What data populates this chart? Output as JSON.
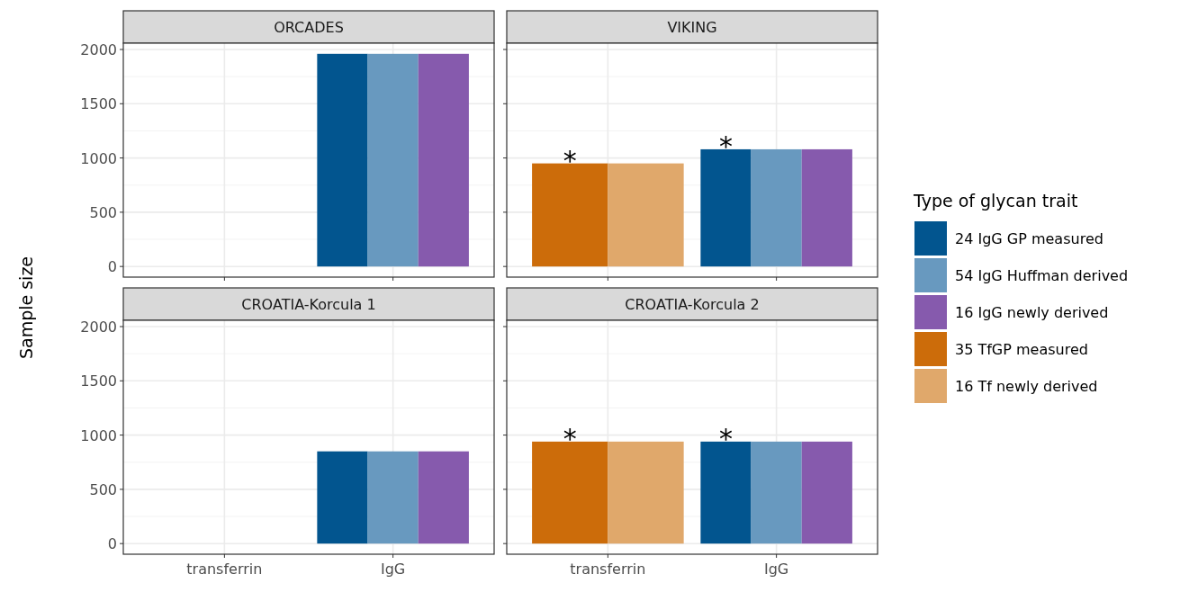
{
  "chart_data": [
    {
      "type": "bar",
      "title": "ORCADES",
      "ylabel": "Sample size",
      "categories": [
        "transferrin",
        "IgG"
      ],
      "ylim": [
        -98,
        2058
      ],
      "yticks": [
        0,
        500,
        1000,
        1500,
        2000
      ],
      "grid": true,
      "tick_labels": "y",
      "series": [
        {
          "color": "#02558f",
          "values": [
            null,
            1960
          ]
        },
        {
          "color": "#6899bf",
          "values": [
            null,
            1960
          ]
        },
        {
          "color": "#865aad",
          "values": [
            null,
            1960
          ]
        }
      ]
    },
    {
      "type": "bar",
      "title": "VIKING",
      "categories": [
        "transferrin",
        "IgG"
      ],
      "ylim": [
        -98,
        2058
      ],
      "yticks": [
        0,
        500,
        1000,
        1500,
        2000
      ],
      "grid": true,
      "tick_labels": false,
      "legend": "right",
      "legend_title": "Type of glycan trait",
      "annotations": [
        {
          "text": "*",
          "x": "transferrin",
          "y": 950
        },
        {
          "text": "*",
          "x": "IgG",
          "y": 1080
        }
      ],
      "series": [
        {
          "name": "24 IgG GP measured",
          "color": "#02558f",
          "values": [
            null,
            1080
          ]
        },
        {
          "name": "54 IgG Huffman derived",
          "color": "#6899bf",
          "values": [
            null,
            1080
          ]
        },
        {
          "name": "16 IgG newly derived",
          "color": "#865aad",
          "values": [
            null,
            1080
          ]
        },
        {
          "name": "35 TfGP measured",
          "color": "#cc6c0a",
          "values": [
            950,
            null
          ]
        },
        {
          "name": "16 Tf newly derived",
          "color": "#e0a86b",
          "values": [
            950,
            null
          ]
        }
      ]
    },
    {
      "type": "bar",
      "title": "CROATIA-Korcula 1",
      "categories": [
        "transferrin",
        "IgG"
      ],
      "ylim": [
        -98,
        2058
      ],
      "yticks": [
        0,
        500,
        1000,
        1500,
        2000
      ],
      "grid": true,
      "series": [
        {
          "color": "#02558f",
          "values": [
            null,
            850
          ]
        },
        {
          "color": "#6899bf",
          "values": [
            null,
            850
          ]
        },
        {
          "color": "#865aad",
          "values": [
            null,
            850
          ]
        }
      ]
    },
    {
      "type": "bar",
      "title": "CROATIA-Korcula 2",
      "categories": [
        "transferrin",
        "IgG"
      ],
      "ylim": [
        -98,
        2058
      ],
      "yticks": [
        0,
        500,
        1000,
        1500,
        2000
      ],
      "grid": true,
      "tick_labels": "x",
      "annotations": [
        {
          "text": "*",
          "x": "transferrin",
          "y": 940
        },
        {
          "text": "*",
          "x": "IgG",
          "y": 940
        }
      ],
      "series": [
        {
          "color": "#02558f",
          "values": [
            null,
            940
          ]
        },
        {
          "color": "#6899bf",
          "values": [
            null,
            940
          ]
        },
        {
          "color": "#865aad",
          "values": [
            null,
            940
          ]
        },
        {
          "color": "#cc6c0a",
          "values": [
            940,
            null
          ]
        },
        {
          "color": "#e0a86b",
          "values": [
            940,
            null
          ]
        }
      ]
    }
  ]
}
